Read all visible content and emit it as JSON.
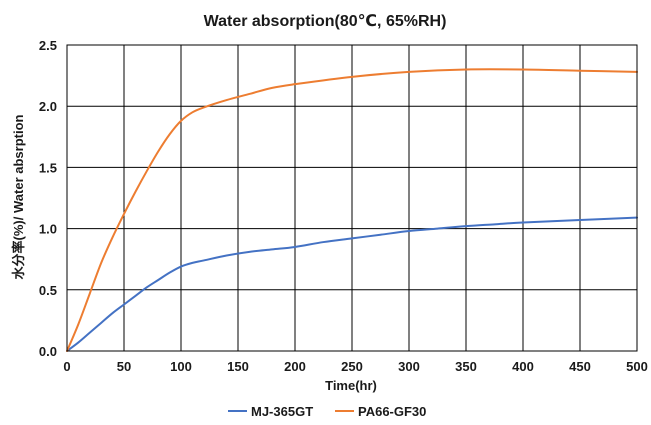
{
  "chart_data": {
    "type": "line",
    "title": "Water absorption(80℃, 65%RH)",
    "xlabel": "Time(hr)",
    "ylabel": "水分率(%)/ Water absrption",
    "xlim": [
      0,
      500
    ],
    "ylim": [
      0,
      2.5
    ],
    "x_ticks": [
      "0",
      "50",
      "100",
      "150",
      "200",
      "250",
      "300",
      "350",
      "400",
      "450",
      "500"
    ],
    "y_ticks": [
      "0.0",
      "0.5",
      "1.0",
      "1.5",
      "2.0",
      "2.5"
    ],
    "grid": true,
    "legend_position": "bottom",
    "series": [
      {
        "name": "MJ-365GT",
        "color": "#4472C4",
        "x": [
          0,
          10,
          20,
          30,
          40,
          50,
          60,
          70,
          80,
          90,
          100,
          110,
          120,
          140,
          160,
          180,
          200,
          225,
          250,
          275,
          300,
          325,
          350,
          375,
          400,
          450,
          500
        ],
        "y": [
          0,
          0.07,
          0.15,
          0.23,
          0.31,
          0.38,
          0.45,
          0.52,
          0.58,
          0.64,
          0.69,
          0.72,
          0.74,
          0.78,
          0.81,
          0.83,
          0.85,
          0.89,
          0.92,
          0.95,
          0.98,
          1.0,
          1.02,
          1.035,
          1.05,
          1.07,
          1.09
        ]
      },
      {
        "name": "PA66-GF30",
        "color": "#ED7D31",
        "x": [
          0,
          10,
          20,
          30,
          40,
          50,
          60,
          70,
          80,
          90,
          100,
          110,
          120,
          140,
          160,
          180,
          200,
          250,
          300,
          350,
          400,
          450,
          500
        ],
        "y": [
          0,
          0.22,
          0.47,
          0.72,
          0.93,
          1.12,
          1.3,
          1.47,
          1.63,
          1.77,
          1.88,
          1.95,
          1.99,
          2.05,
          2.1,
          2.15,
          2.18,
          2.24,
          2.28,
          2.3,
          2.3,
          2.29,
          2.28
        ]
      }
    ]
  }
}
